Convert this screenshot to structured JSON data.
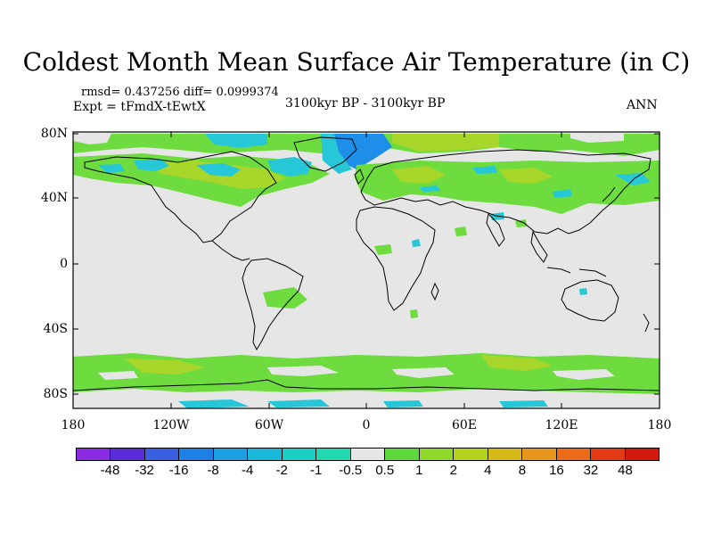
{
  "title": "Coldest Month Mean Surface Air Temperature (in C)",
  "stats": "rmsd= 0.437256 diff= 0.0999374",
  "experiment": "Expt = tFmdX-tEwtX",
  "period": "3100kyr BP - 3100kyr BP",
  "season": "ANN",
  "y_ticks": [
    "80N",
    "40N",
    "0",
    "40S",
    "80S"
  ],
  "x_ticks": [
    "180",
    "120W",
    "60W",
    "0",
    "60E",
    "120E",
    "180"
  ],
  "colorbar": {
    "labels": [
      "-48",
      "-32",
      "-16",
      "-8",
      "-4",
      "-2",
      "-1",
      "-0.5",
      "0.5",
      "1",
      "2",
      "4",
      "8",
      "16",
      "32",
      "48"
    ],
    "colors": [
      "#8a2be2",
      "#5a2bd8",
      "#3a5fe0",
      "#1e7fe6",
      "#1aa0e0",
      "#19b8d8",
      "#1ccfc4",
      "#22d8b0",
      "#e6e6e6",
      "#5ed83a",
      "#8ed82a",
      "#b6d21c",
      "#d6b818",
      "#e6961a",
      "#ec6a18",
      "#e23a14",
      "#d41a0e"
    ]
  },
  "map_colors": {
    "background": "#e6e6e6",
    "green": "#6edc3e",
    "yellow_green": "#a8d62a",
    "cyan": "#26c8d8",
    "blue": "#1e8ee8",
    "coast": "#000000"
  }
}
